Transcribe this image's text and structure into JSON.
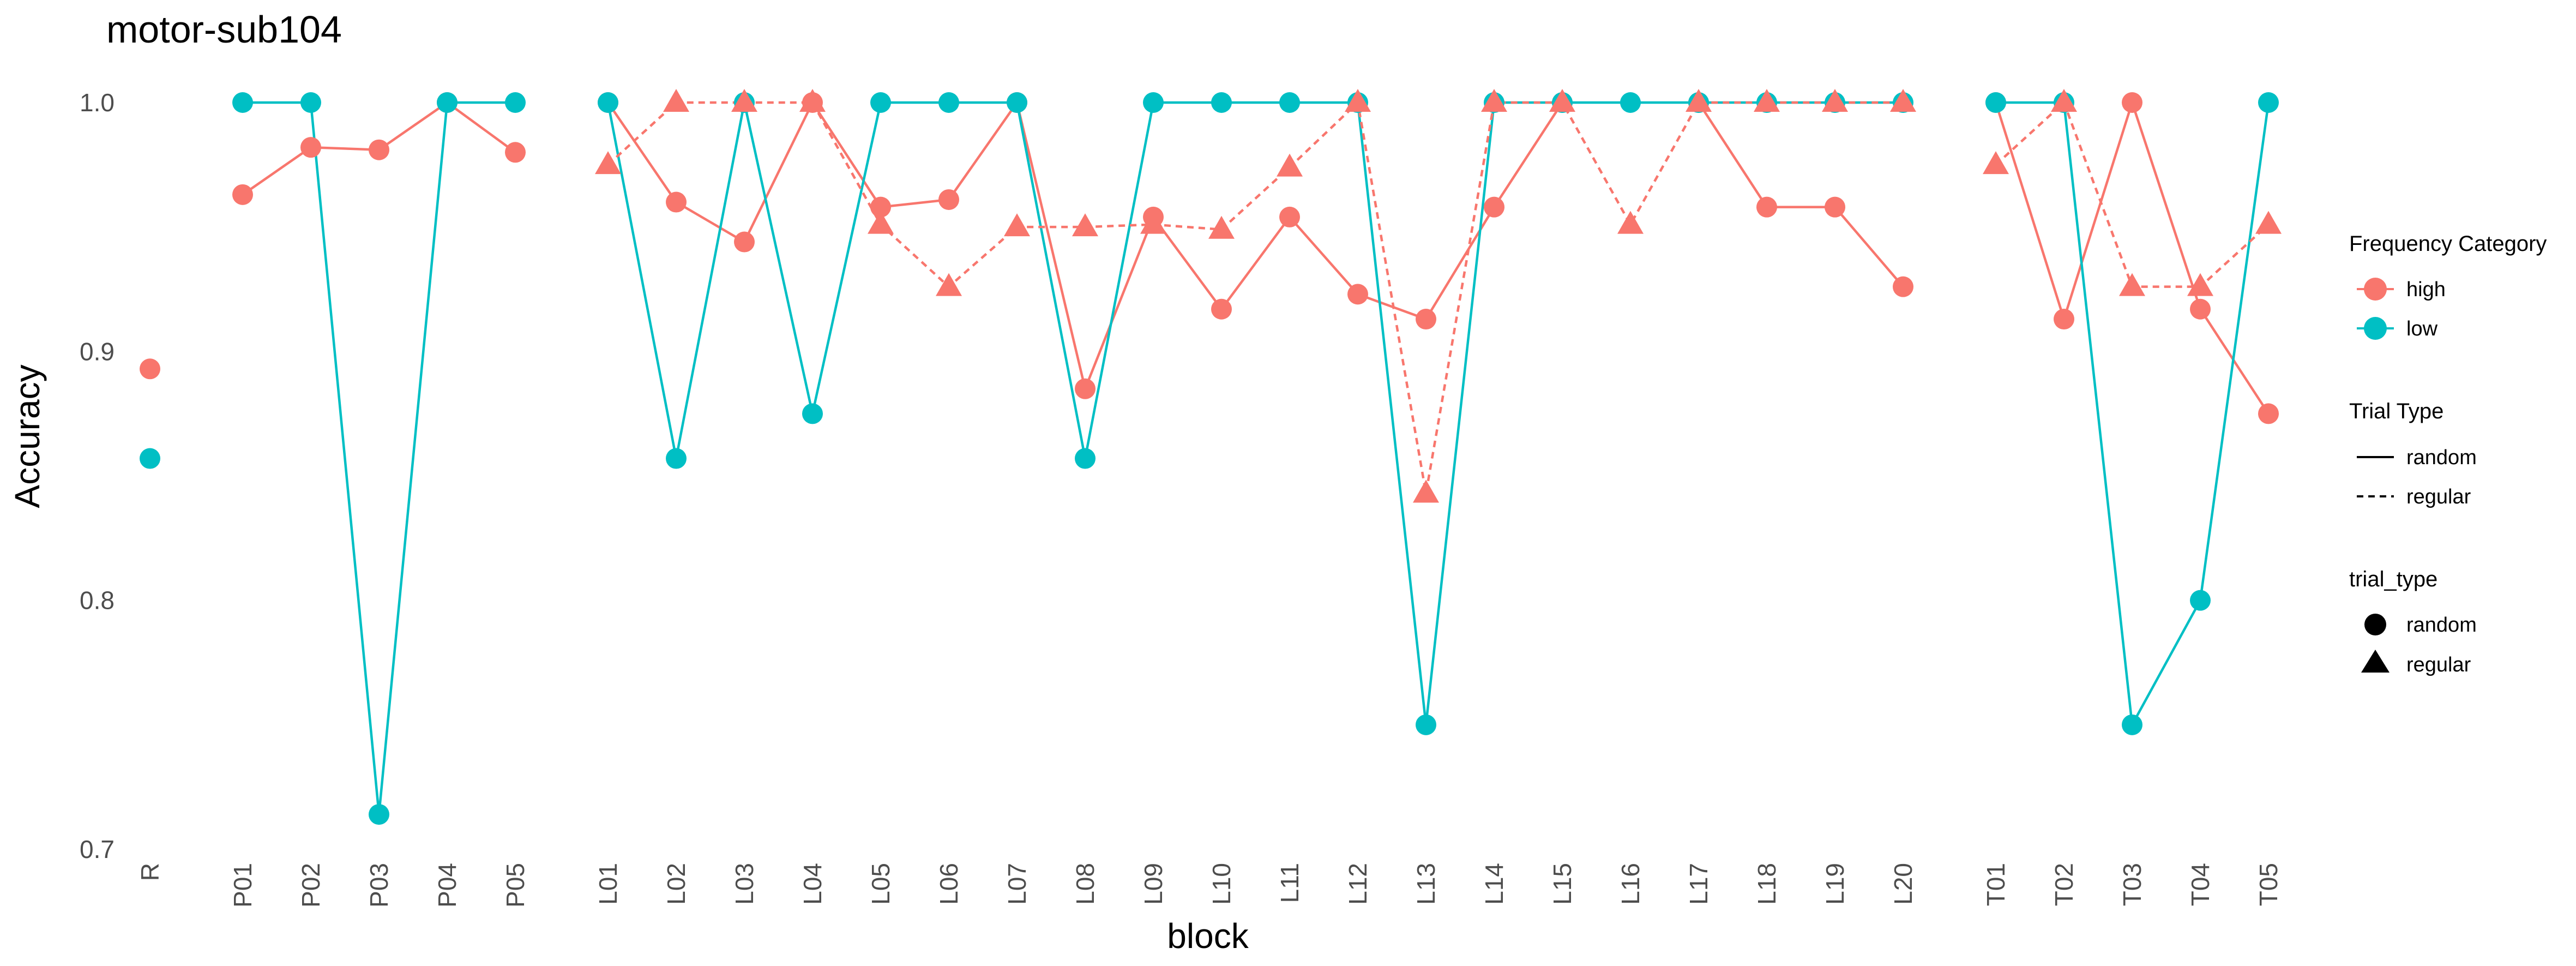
{
  "chart_data": {
    "type": "line",
    "title": "motor-sub104",
    "xlabel": "block",
    "ylabel": "Accuracy",
    "ylim": [
      0.7,
      1.0
    ],
    "yticks": [
      "0.7",
      "0.8",
      "0.9",
      "1.0"
    ],
    "grid": false,
    "legend_position": "right",
    "categories": [
      "R",
      "P01",
      "P02",
      "P03",
      "P04",
      "P05",
      "L01",
      "L02",
      "L03",
      "L04",
      "L05",
      "L06",
      "L07",
      "L08",
      "L09",
      "L10",
      "L11",
      "L12",
      "L13",
      "L14",
      "L15",
      "L16",
      "L17",
      "L18",
      "L19",
      "L20",
      "T01",
      "T02",
      "T03",
      "T04",
      "T05"
    ],
    "colors": {
      "high": "#F8766D",
      "low": "#00BFC4"
    },
    "legends": [
      {
        "title": "Frequency Category",
        "kind": "color",
        "items": [
          "high",
          "low"
        ]
      },
      {
        "title": "Trial Type",
        "kind": "linetype",
        "items": [
          "random",
          "regular"
        ]
      },
      {
        "title": "trial_type",
        "kind": "shape",
        "items": [
          "random",
          "regular"
        ]
      }
    ],
    "series": [
      {
        "name": "high",
        "frequency": "high",
        "trial_type": "random",
        "color": "#F8766D",
        "marker": "circle",
        "line": "solid",
        "values": [
          0.893,
          0.963,
          0.982,
          0.981,
          1.0,
          0.98,
          1.0,
          0.96,
          0.944,
          1.0,
          0.958,
          0.961,
          1.0,
          0.885,
          0.954,
          0.917,
          0.954,
          0.923,
          0.913,
          0.958,
          1.0,
          null,
          1.0,
          0.958,
          0.958,
          0.926,
          1.0,
          0.913,
          1.0,
          0.917,
          0.875
        ]
      },
      {
        "name": "low",
        "frequency": "low",
        "trial_type": "random",
        "color": "#00BFC4",
        "marker": "circle",
        "line": "solid",
        "values": [
          0.857,
          1.0,
          1.0,
          0.714,
          1.0,
          1.0,
          1.0,
          0.857,
          1.0,
          0.875,
          1.0,
          1.0,
          1.0,
          0.857,
          1.0,
          1.0,
          1.0,
          1.0,
          0.75,
          1.0,
          1.0,
          1.0,
          1.0,
          1.0,
          1.0,
          1.0,
          1.0,
          1.0,
          0.75,
          0.8,
          1.0
        ]
      },
      {
        "name": "high",
        "frequency": "high",
        "trial_type": "regular",
        "color": "#F8766D",
        "marker": "triangle",
        "line": "dashed",
        "values": [
          null,
          null,
          null,
          null,
          null,
          null,
          0.975,
          1.0,
          1.0,
          1.0,
          0.951,
          0.926,
          0.95,
          0.95,
          0.951,
          0.949,
          0.974,
          1.0,
          0.843,
          1.0,
          1.0,
          0.951,
          1.0,
          1.0,
          1.0,
          1.0,
          0.975,
          1.0,
          0.926,
          0.926,
          0.951
        ]
      }
    ]
  }
}
